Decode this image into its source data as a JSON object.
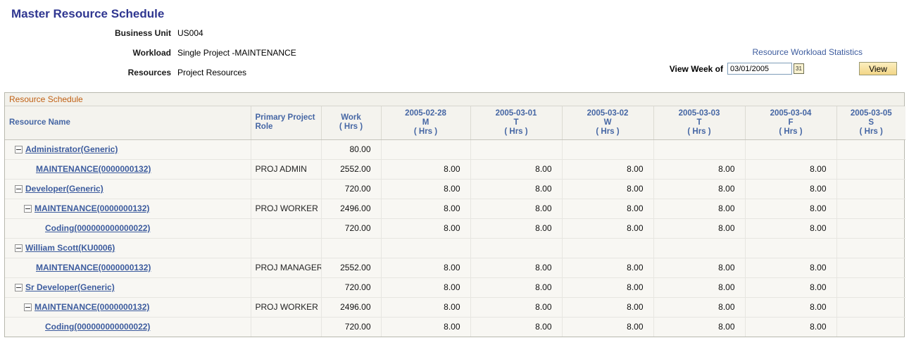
{
  "page": {
    "title": "Master Resource Schedule",
    "fields": [
      {
        "label": "Business Unit",
        "value": "US004"
      },
      {
        "label": "Workload",
        "value": "Single Project -MAINTENANCE"
      },
      {
        "label": "Resources",
        "value": "Project Resources"
      }
    ],
    "stats_link": "Resource Workload Statistics",
    "view_week": {
      "label": "View Week of",
      "value": "03/01/2005",
      "calendar_icon": "calendar-31-icon",
      "calendar_glyph": "31"
    },
    "view_button": "View"
  },
  "grid": {
    "title": "Resource Schedule",
    "columns": [
      {
        "l1": "Resource Name",
        "l2": "",
        "l3": ""
      },
      {
        "l1": "Primary Project",
        "l2": "Role",
        "l3": ""
      },
      {
        "l1": "Work",
        "l2": "( Hrs )",
        "l3": ""
      },
      {
        "l1": "2005-02-28",
        "l2": "M",
        "l3": "( Hrs )"
      },
      {
        "l1": "2005-03-01",
        "l2": "T",
        "l3": "( Hrs )"
      },
      {
        "l1": "2005-03-02",
        "l2": "W",
        "l3": "( Hrs )"
      },
      {
        "l1": "2005-03-03",
        "l2": "T",
        "l3": "( Hrs )"
      },
      {
        "l1": "2005-03-04",
        "l2": "F",
        "l3": "( Hrs )"
      },
      {
        "l1": "2005-03-05",
        "l2": "S",
        "l3": "( Hrs )"
      }
    ],
    "rows": [
      {
        "level": 1,
        "collapse": true,
        "name": "Administrator(Generic)",
        "role": "",
        "work": "80.00",
        "days": [
          "",
          "",
          "",
          "",
          "",
          ""
        ]
      },
      {
        "level": 2,
        "collapse": false,
        "name": "MAINTENANCE(0000000132)",
        "role": "PROJ ADMIN",
        "work": "2552.00",
        "days": [
          "8.00",
          "8.00",
          "8.00",
          "8.00",
          "8.00",
          ""
        ]
      },
      {
        "level": 1,
        "collapse": true,
        "name": "Developer(Generic)",
        "role": "",
        "work": "720.00",
        "days": [
          "8.00",
          "8.00",
          "8.00",
          "8.00",
          "8.00",
          ""
        ]
      },
      {
        "level": 2,
        "collapse": true,
        "name": "MAINTENANCE(0000000132)",
        "role": "PROJ WORKER",
        "work": "2496.00",
        "days": [
          "8.00",
          "8.00",
          "8.00",
          "8.00",
          "8.00",
          ""
        ]
      },
      {
        "level": 3,
        "collapse": false,
        "name": "Coding(000000000000022)",
        "role": "",
        "work": "720.00",
        "days": [
          "8.00",
          "8.00",
          "8.00",
          "8.00",
          "8.00",
          ""
        ]
      },
      {
        "level": 1,
        "collapse": true,
        "name": "William Scott(KU0006)",
        "role": "",
        "work": "",
        "days": [
          "",
          "",
          "",
          "",
          "",
          ""
        ]
      },
      {
        "level": 2,
        "collapse": false,
        "name": "MAINTENANCE(0000000132)",
        "role": "PROJ MANAGER",
        "work": "2552.00",
        "days": [
          "8.00",
          "8.00",
          "8.00",
          "8.00",
          "8.00",
          ""
        ]
      },
      {
        "level": 1,
        "collapse": true,
        "name": "Sr Developer(Generic)",
        "role": "",
        "work": "720.00",
        "days": [
          "8.00",
          "8.00",
          "8.00",
          "8.00",
          "8.00",
          ""
        ]
      },
      {
        "level": 2,
        "collapse": true,
        "name": "MAINTENANCE(0000000132)",
        "role": "PROJ WORKER",
        "work": "2496.00",
        "days": [
          "8.00",
          "8.00",
          "8.00",
          "8.00",
          "8.00",
          ""
        ]
      },
      {
        "level": 3,
        "collapse": false,
        "name": "Coding(000000000000022)",
        "role": "",
        "work": "720.00",
        "days": [
          "8.00",
          "8.00",
          "8.00",
          "8.00",
          "8.00",
          ""
        ]
      }
    ]
  },
  "colors": {
    "title": "#2F3690",
    "link": "#3D5C9E",
    "grid_label": "#C06014",
    "column_header_text": "#4566A4",
    "button_bg": "#F5DC94"
  }
}
